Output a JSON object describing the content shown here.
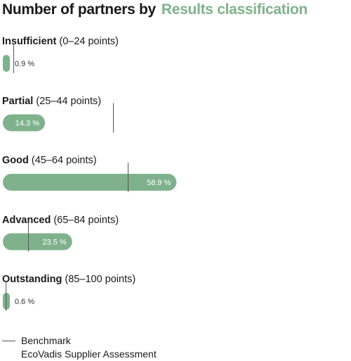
{
  "colors": {
    "bar": "#7fb28c",
    "accent": "#7fb28c",
    "benchmark": "#555555"
  },
  "title": {
    "main": "Number of partners by",
    "accent": "Results classification"
  },
  "legend": {
    "line1": "Benchmark",
    "line2": "EcoVadis Supplier Assessment"
  },
  "chart_data": {
    "type": "bar",
    "orientation": "horizontal",
    "categories": [
      {
        "name": "Insufficient",
        "range": "(0–24 points)"
      },
      {
        "name": "Partial",
        "range": "(25–44 points)"
      },
      {
        "name": "Good",
        "range": "(45–64 points)"
      },
      {
        "name": "Advanced",
        "range": "(65–84 points)"
      },
      {
        "name": "Outstanding",
        "range": "(85–100 points)"
      }
    ],
    "values": [
      0.9,
      14.3,
      58.9,
      23.5,
      0.6
    ],
    "value_labels": [
      "0.9 %",
      "14.3 %",
      "58.9 %",
      "23.5 %",
      "0.6 %"
    ],
    "benchmark_values": [
      3.7,
      37.5,
      42.5,
      8.7,
      1.1
    ],
    "unit": "%",
    "xlim": [
      0,
      60
    ],
    "grid": false,
    "legend_position": "bottom-left"
  }
}
